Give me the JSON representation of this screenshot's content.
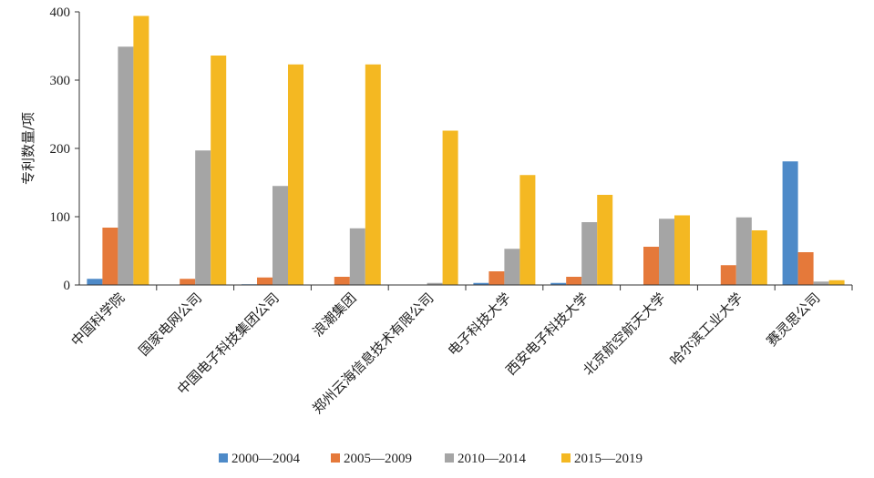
{
  "chart_data": {
    "type": "bar",
    "title": "",
    "xlabel": "",
    "ylabel": "专利数量/项",
    "ylim": [
      0,
      400
    ],
    "yticks": [
      0,
      100,
      200,
      300,
      400
    ],
    "legend_position": "bottom",
    "grid": false,
    "categories": [
      "中国科学院",
      "国家电网公司",
      "中国电子科技集团公司",
      "浪潮集团",
      "郑州云海信息技术有限公司",
      "电子科技大学",
      "西安电子科技大学",
      "北京航空航天大学",
      "哈尔滨工业大学",
      "赛灵思公司"
    ],
    "series": [
      {
        "name": "2000—2004",
        "color": "#4e8ac8",
        "values": [
          9,
          0,
          1,
          0,
          0,
          3,
          3,
          0,
          0,
          181
        ]
      },
      {
        "name": "2005—2009",
        "color": "#e5793a",
        "values": [
          84,
          9,
          11,
          12,
          0,
          20,
          12,
          56,
          29,
          48
        ]
      },
      {
        "name": "2010—2014",
        "color": "#a5a5a5",
        "values": [
          349,
          197,
          145,
          83,
          3,
          53,
          92,
          97,
          99,
          5
        ]
      },
      {
        "name": "2015—2019",
        "color": "#f4b822",
        "values": [
          394,
          336,
          323,
          323,
          226,
          161,
          132,
          102,
          80,
          7
        ]
      }
    ]
  }
}
